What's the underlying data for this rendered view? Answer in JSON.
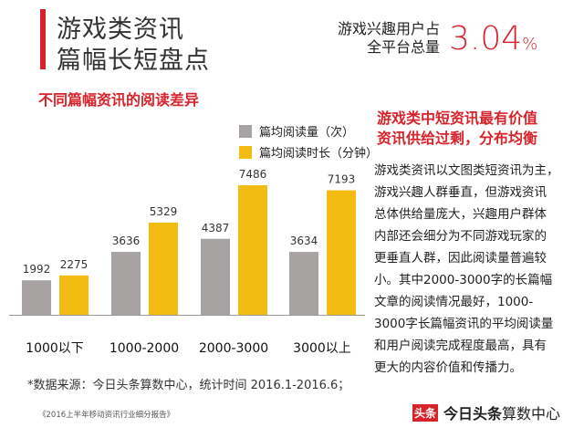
{
  "header": {
    "title_line1": "游戏类资讯",
    "title_line2": "篇幅长短盘点",
    "stat_label_line1": "游戏兴趣用户占",
    "stat_label_line2": "全平台总量",
    "stat_value": "3.04",
    "stat_unit": "%"
  },
  "subtitle": "不同篇幅资讯的阅读差异",
  "colors": {
    "accent": "#d8232a",
    "gray_series": "#a8a3a3",
    "gold_series": "#f3bc13"
  },
  "chart_data": {
    "type": "bar",
    "categories": [
      "1000以下",
      "1000-2000",
      "2000-3000",
      "3000以上"
    ],
    "series": [
      {
        "name": "篇均阅读量（次）",
        "values": [
          1992,
          3636,
          4387,
          3634
        ]
      },
      {
        "name": "篇均阅读时长（分钟）",
        "values": [
          2275,
          5329,
          7486,
          7193
        ]
      }
    ],
    "legend": "top-right",
    "grid": false
  },
  "insight": {
    "heading_line1": "游戏类中短资讯最有价值",
    "heading_line2": "资讯供给过剩，分布均衡",
    "body_lines": [
      "游戏类资讯以文图类短资讯为主，",
      "游戏兴趣人群垂直，但游戏资讯",
      "总体供给量庞大，兴趣用户群体",
      "内部还会细分为不同游戏玩家的",
      "更垂直人群，因此阅读量普遍较",
      "小。其中2000-3000字的长篇幅",
      "文章的阅读情况最好，1000-",
      "3000字长篇幅资讯的平均阅读量",
      "和用户阅读完成程度最高，具有",
      "更大的内容价值和传播力。"
    ]
  },
  "footer": {
    "source": "*数据来源：今日头条算数中心，统计时间 2016.1-2016.6；",
    "report": "《2016上半年移动资讯行业细分报告》",
    "logo_badge": "头条",
    "logo_name": "今日头条",
    "logo_suffix": "算数中心"
  }
}
